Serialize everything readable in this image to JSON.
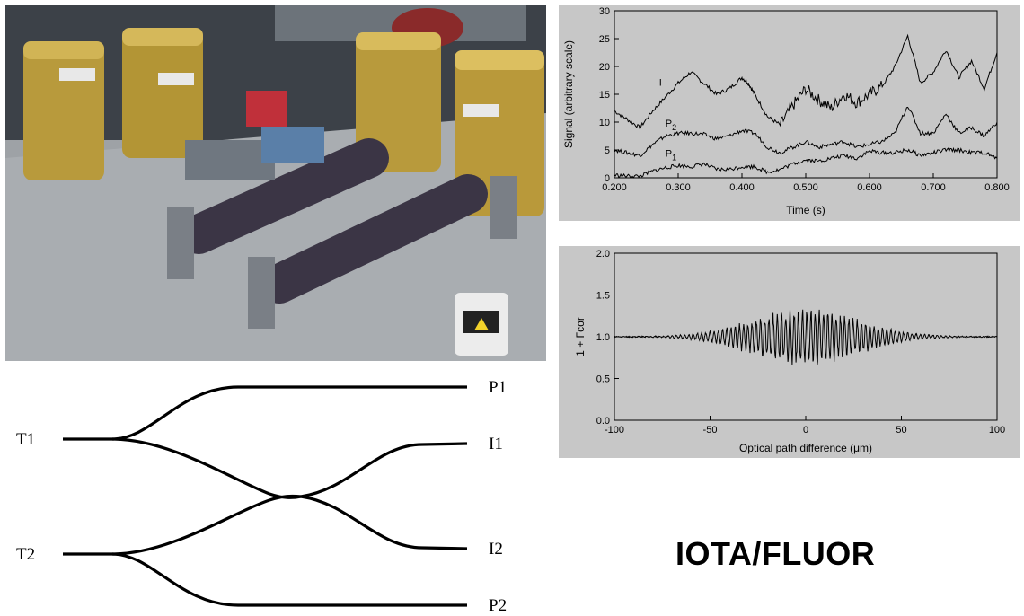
{
  "title": "IOTA/FLUOR",
  "coupler": {
    "inputs": [
      "T1",
      "T2"
    ],
    "outputs": [
      "P1",
      "I1",
      "I2",
      "P2"
    ]
  },
  "chart_data": [
    {
      "type": "line",
      "xlabel": "Time (s)",
      "ylabel": "Signal (arbitrary scale)",
      "xlim": [
        0.2,
        0.8
      ],
      "ylim": [
        0,
        30
      ],
      "xticks": [
        "0.200",
        "0.300",
        "0.400",
        "0.500",
        "0.600",
        "0.700",
        "0.800"
      ],
      "yticks": [
        "0",
        "5",
        "10",
        "15",
        "20",
        "25",
        "30"
      ],
      "series": [
        {
          "name": "I",
          "x": [
            0.2,
            0.22,
            0.24,
            0.26,
            0.28,
            0.3,
            0.32,
            0.34,
            0.36,
            0.38,
            0.4,
            0.41,
            0.42,
            0.44,
            0.46,
            0.48,
            0.5,
            0.52,
            0.54,
            0.56,
            0.58,
            0.6,
            0.62,
            0.64,
            0.66,
            0.68,
            0.7,
            0.72,
            0.74,
            0.76,
            0.78,
            0.8
          ],
          "y": [
            12,
            10.5,
            9,
            12,
            14.5,
            17,
            19,
            17,
            15,
            16,
            18,
            17,
            15,
            11,
            9.5,
            13,
            16,
            14,
            12.5,
            15,
            13.5,
            15,
            16.5,
            20,
            25.5,
            17,
            19,
            23,
            18,
            21,
            16,
            22.5
          ]
        },
        {
          "name": "P2",
          "x": [
            0.2,
            0.22,
            0.24,
            0.26,
            0.28,
            0.3,
            0.32,
            0.34,
            0.36,
            0.38,
            0.4,
            0.42,
            0.44,
            0.46,
            0.48,
            0.5,
            0.52,
            0.54,
            0.56,
            0.58,
            0.6,
            0.62,
            0.64,
            0.66,
            0.68,
            0.7,
            0.72,
            0.74,
            0.76,
            0.78,
            0.8
          ],
          "y": [
            5,
            4.5,
            4,
            6,
            7.5,
            8,
            8,
            7.8,
            7,
            7.5,
            8.5,
            8,
            5.5,
            4.5,
            5.5,
            6.5,
            5.5,
            6,
            6.5,
            5.5,
            6,
            6.5,
            8,
            13,
            8,
            8,
            11.5,
            8,
            9,
            7.5,
            10
          ]
        },
        {
          "name": "P1",
          "x": [
            0.2,
            0.22,
            0.24,
            0.26,
            0.28,
            0.3,
            0.32,
            0.34,
            0.36,
            0.38,
            0.4,
            0.42,
            0.44,
            0.46,
            0.48,
            0.5,
            0.52,
            0.54,
            0.56,
            0.58,
            0.6,
            0.62,
            0.64,
            0.66,
            0.68,
            0.7,
            0.72,
            0.74,
            0.76,
            0.78,
            0.8
          ],
          "y": [
            0.5,
            0.3,
            0.3,
            1.2,
            1.8,
            2.2,
            2,
            2.5,
            1.5,
            1.5,
            2,
            2,
            1,
            1.5,
            2.5,
            3.2,
            3,
            3.5,
            4,
            3.5,
            4.8,
            4.5,
            4.5,
            5,
            4,
            4.5,
            5,
            5,
            4.5,
            4.5,
            3.5
          ]
        }
      ]
    },
    {
      "type": "line",
      "xlabel": "Optical path difference (μm)",
      "ylabel": "1 + Γcor",
      "xlim": [
        -100,
        100
      ],
      "ylim": [
        0,
        2
      ],
      "xticks": [
        "-100",
        "-50",
        "0",
        "50",
        "100"
      ],
      "yticks": [
        "0.0",
        "0.5",
        "1.0",
        "1.5",
        "2.0"
      ],
      "envelope_sigma_um": 28,
      "peak_amplitude": 0.28,
      "fringe_period_um": 2.2,
      "baseline": 1.0
    }
  ]
}
